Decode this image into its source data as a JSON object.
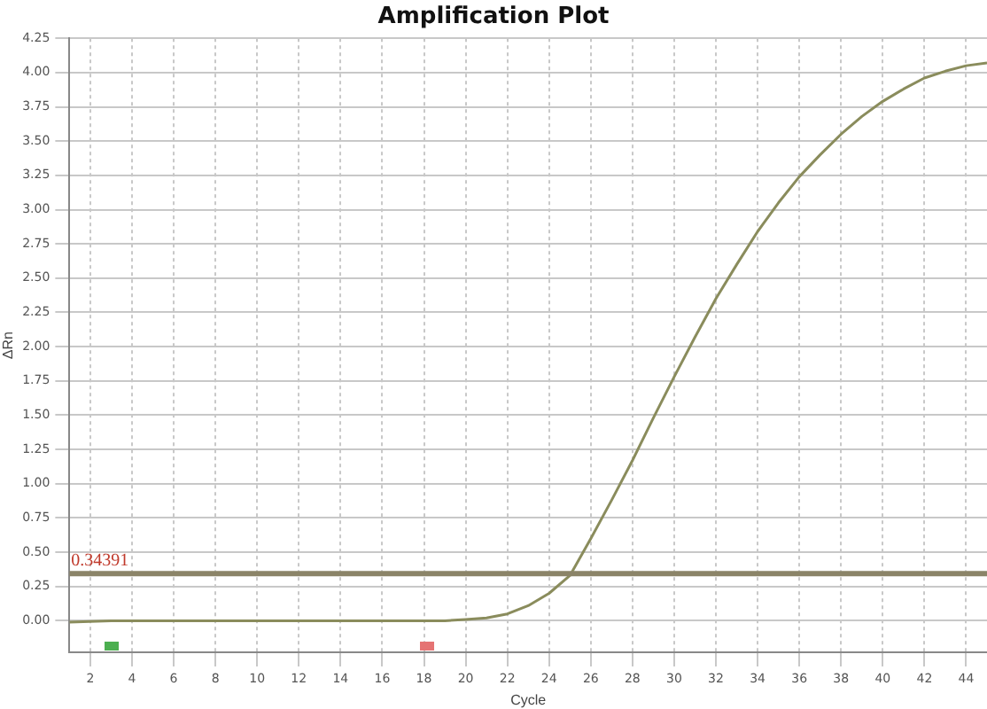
{
  "chart_data": {
    "type": "line",
    "title": "Amplification Plot",
    "xlabel": "Cycle",
    "ylabel": "ΔRn",
    "x": [
      1,
      3,
      5,
      7,
      9,
      11,
      13,
      15,
      17,
      19,
      20,
      21,
      22,
      23,
      24,
      25,
      26,
      27,
      28,
      29,
      30,
      31,
      32,
      33,
      34,
      35,
      36,
      37,
      38,
      39,
      40,
      41,
      42,
      43,
      44,
      45
    ],
    "series": [
      {
        "color": "#8a8c5c",
        "values": [
          -0.01,
          0.0,
          0.0,
          0.0,
          0.0,
          0.0,
          0.0,
          0.0,
          0.0,
          0.0,
          0.01,
          0.02,
          0.05,
          0.11,
          0.2,
          0.33,
          0.6,
          0.88,
          1.17,
          1.48,
          1.78,
          2.07,
          2.35,
          2.6,
          2.84,
          3.05,
          3.24,
          3.4,
          3.55,
          3.68,
          3.79,
          3.88,
          3.96,
          4.01,
          4.05,
          4.07
        ]
      }
    ],
    "xlim": [
      1,
      45
    ],
    "xticks": [
      2,
      4,
      6,
      8,
      10,
      12,
      14,
      16,
      18,
      20,
      22,
      24,
      26,
      28,
      30,
      32,
      34,
      36,
      38,
      40,
      42,
      44
    ],
    "ylim": [
      -0.23,
      4.25
    ],
    "yticks": [
      {
        "value": 0,
        "label": "0.00"
      },
      {
        "value": 0.25,
        "label": "0.25"
      },
      {
        "value": 0.5,
        "label": "0.50"
      },
      {
        "value": 0.75,
        "label": "0.75"
      },
      {
        "value": 1,
        "label": "1.00"
      },
      {
        "value": 1.25,
        "label": "1.25"
      },
      {
        "value": 1.5,
        "label": "1.50"
      },
      {
        "value": 1.75,
        "label": "1.75"
      },
      {
        "value": 2,
        "label": "2.00"
      },
      {
        "value": 2.25,
        "label": "2.25"
      },
      {
        "value": 2.5,
        "label": "2.50"
      },
      {
        "value": 2.75,
        "label": "2.75"
      },
      {
        "value": 3,
        "label": "3.00"
      },
      {
        "value": 3.25,
        "label": "3.25"
      },
      {
        "value": 3.5,
        "label": "3.50"
      },
      {
        "value": 3.75,
        "label": "3.75"
      },
      {
        "value": 4,
        "label": "4.00"
      },
      {
        "value": 4.25,
        "label": "4.25"
      }
    ],
    "ref_lines": [
      {
        "axis": "y",
        "value": 0.34391,
        "label": "0.34391",
        "color": "#8b8468"
      }
    ],
    "grid": true,
    "legend": false,
    "marker": "none",
    "line_style": "solid"
  }
}
